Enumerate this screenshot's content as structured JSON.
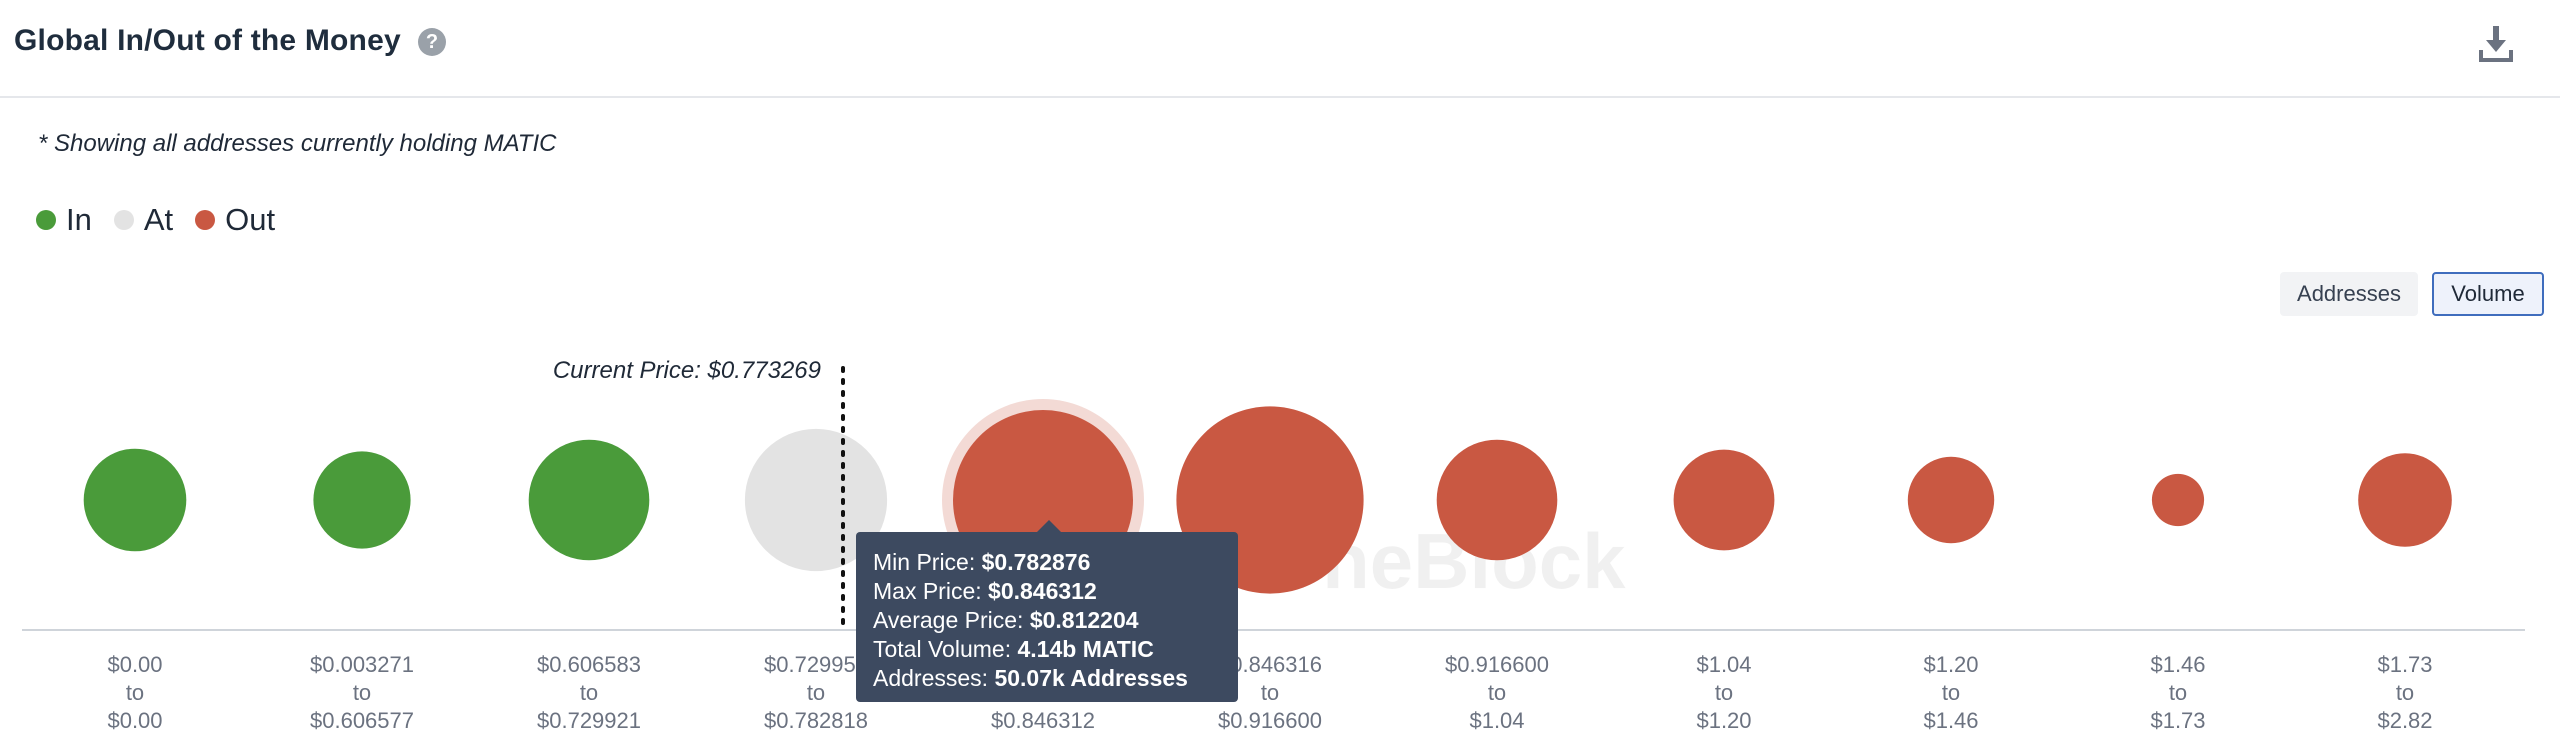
{
  "header": {
    "title": "Global In/Out of the Money",
    "help_icon": "question-circle-icon",
    "download_icon": "download-icon"
  },
  "note": "* Showing all addresses currently holding MATIC",
  "legend": [
    {
      "label": "In",
      "color": "#4a9b3a"
    },
    {
      "label": "At",
      "color": "#e3e3e3"
    },
    {
      "label": "Out",
      "color": "#c95842"
    }
  ],
  "toggles": {
    "addresses": "Addresses",
    "volume": "Volume",
    "selected": "Volume"
  },
  "watermark": "TheBlock",
  "chart_data": {
    "type": "scatter",
    "encoding": "bubble size = total volume per price range",
    "current_price_label": "Current Price: $0.773269",
    "current_price": 0.773269,
    "colors": {
      "In": "#4a9b3a",
      "At": "#e3e3e3",
      "Out": "#c95842"
    },
    "ranges": [
      {
        "from": "$0.00",
        "to": "$0.00",
        "status": "In",
        "relative_size": 0.57
      },
      {
        "from": "$0.003271",
        "to": "$0.606577",
        "status": "In",
        "relative_size": 0.54
      },
      {
        "from": "$0.606583",
        "to": "$0.729921",
        "status": "In",
        "relative_size": 0.67
      },
      {
        "from": "$0.729958",
        "to": "$0.782818",
        "status": "At",
        "relative_size": 0.79
      },
      {
        "from": "$0.782876",
        "to": "$0.846312",
        "status": "Out",
        "relative_size": 1.0,
        "highlighted": true
      },
      {
        "from": "$0.846316",
        "to": "$0.916600",
        "status": "Out",
        "relative_size": 1.04
      },
      {
        "from": "$0.916600",
        "to": "$1.04",
        "status": "Out",
        "relative_size": 0.67
      },
      {
        "from": "$1.04",
        "to": "$1.20",
        "status": "Out",
        "relative_size": 0.56
      },
      {
        "from": "$1.20",
        "to": "$1.46",
        "status": "Out",
        "relative_size": 0.48
      },
      {
        "from": "$1.46",
        "to": "$1.73",
        "status": "Out",
        "relative_size": 0.29
      },
      {
        "from": "$1.73",
        "to": "$2.82",
        "status": "Out",
        "relative_size": 0.52
      }
    ],
    "tooltip": {
      "min_price_label": "Min Price:",
      "min_price": "$0.782876",
      "max_price_label": "Max Price:",
      "max_price": "$0.846312",
      "avg_price_label": "Average Price:",
      "avg_price": "$0.812204",
      "total_volume_label": "Total Volume:",
      "total_volume": "4.14b MATIC",
      "addresses_label": "Addresses:",
      "addresses": "50.07k Addresses"
    }
  }
}
